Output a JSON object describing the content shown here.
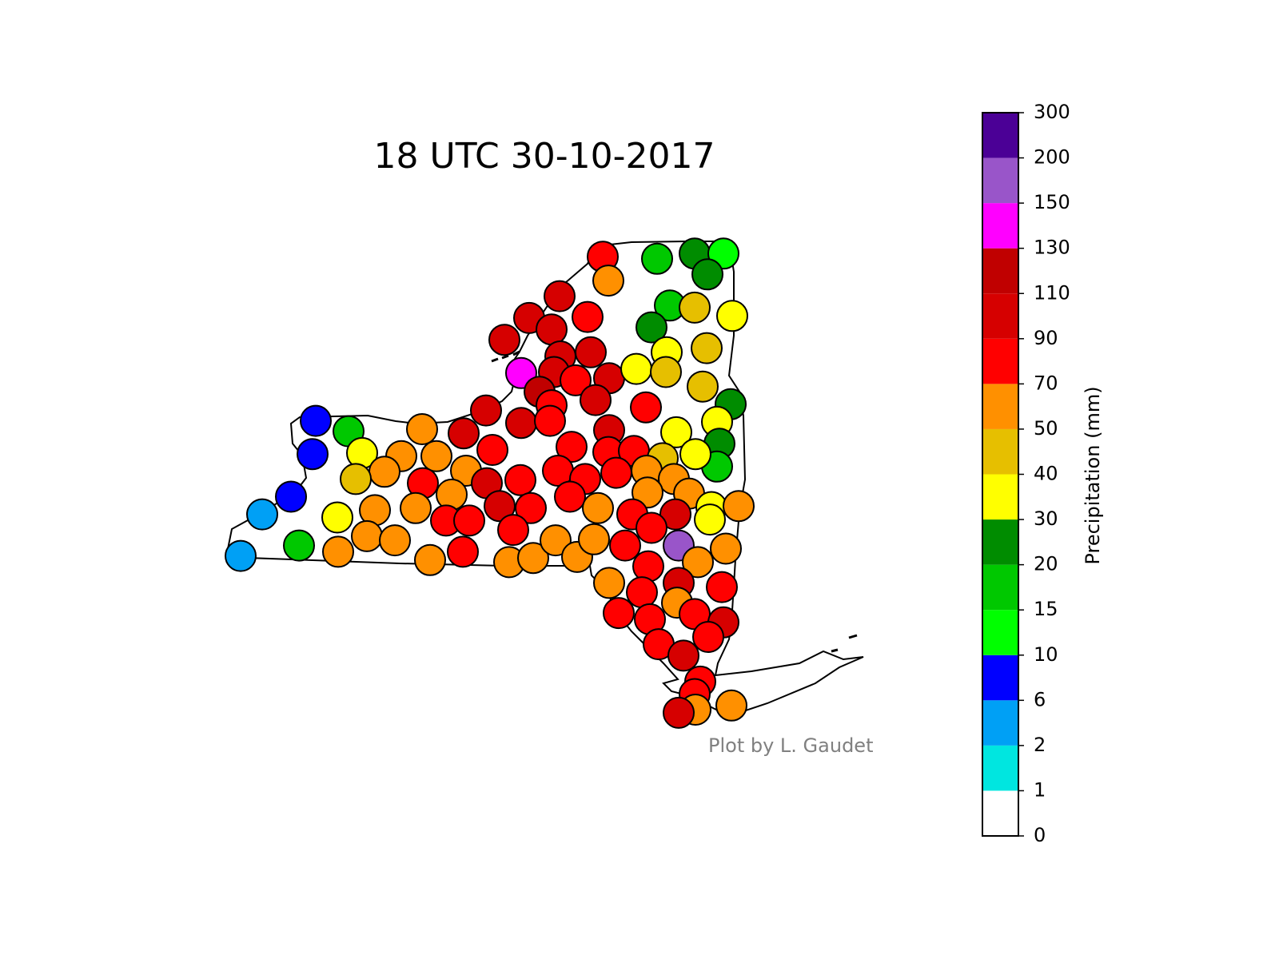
{
  "chart_data": {
    "type": "scatter",
    "title": "18 UTC 30-10-2017",
    "credit": "Plot by L. Gaudet",
    "lon": [
      -75.05,
      -74.37,
      -73.9,
      -73.54,
      -73.74,
      -74.98,
      -75.59,
      -74.21,
      -73.9,
      -73.43,
      -75.97,
      -75.24,
      -75.69,
      -74.44,
      -76.28,
      -73.75,
      -74.25,
      -75.2,
      -75.58,
      -76.07,
      -75.66,
      -75.39,
      -74.97,
      -74.63,
      -74.26,
      -73.8,
      -73.45,
      -75.84,
      -75.69,
      -75.14,
      -74.51,
      -73.62,
      -76.51,
      -76.07,
      -75.71,
      -74.97,
      -74.13,
      -73.59,
      -73.62,
      -73.89,
      -78.64,
      -78.23,
      -78.68,
      -77.31,
      -76.79,
      -76.43,
      -75.44,
      -74.98,
      -74.66,
      -74.3,
      -78.06,
      -77.57,
      -77.13,
      -76.76,
      -77.78,
      -78.14,
      -77.3,
      -76.5,
      -76.08,
      -75.61,
      -75.27,
      -74.88,
      -74.5,
      -74.16,
      -78.95,
      -79.31,
      -76.94,
      -76.34,
      -75.95,
      -75.46,
      -75.11,
      -74.49,
      -73.97,
      -73.69,
      -73.35,
      -73.71,
      -78.37,
      -77.9,
      -77.39,
      -77.01,
      -76.72,
      -76.17,
      -74.68,
      -74.14,
      -74.44,
      -79.58,
      -78.85,
      -78.36,
      -78.0,
      -77.65,
      -77.21,
      -76.8,
      -76.22,
      -75.92,
      -75.64,
      -75.37,
      -75.16,
      -74.77,
      -74.1,
      -73.86,
      -73.51,
      -74.48,
      -74.1,
      -73.56,
      -74.97,
      -74.56,
      -74.12,
      -74.85,
      -74.46,
      -73.9,
      -73.54,
      -73.73,
      -74.35,
      -74.04,
      -73.83,
      -73.9,
      -73.89,
      -74.1,
      -73.44
    ],
    "lat": [
      44.86,
      44.84,
      44.89,
      44.89,
      44.69,
      44.63,
      44.48,
      44.39,
      44.37,
      44.29,
      44.27,
      44.28,
      44.16,
      44.18,
      44.06,
      43.98,
      43.94,
      43.94,
      43.9,
      43.74,
      43.75,
      43.67,
      43.69,
      43.78,
      43.75,
      43.61,
      43.44,
      43.56,
      43.43,
      43.48,
      43.41,
      43.27,
      43.38,
      43.26,
      43.28,
      43.19,
      43.17,
      43.06,
      42.84,
      42.96,
      43.28,
      43.18,
      42.96,
      43.2,
      43.16,
      43.0,
      43.03,
      42.98,
      42.99,
      42.92,
      42.97,
      42.94,
      42.94,
      42.8,
      42.79,
      42.72,
      42.68,
      42.68,
      42.71,
      42.8,
      42.72,
      42.78,
      42.8,
      42.72,
      42.55,
      42.38,
      42.57,
      42.46,
      42.44,
      42.55,
      42.44,
      42.59,
      42.58,
      42.45,
      42.46,
      42.33,
      42.35,
      42.42,
      42.44,
      42.32,
      42.32,
      42.23,
      42.38,
      42.38,
      42.25,
      41.98,
      42.08,
      42.02,
      42.17,
      42.13,
      41.94,
      42.02,
      41.92,
      41.96,
      42.13,
      41.97,
      42.14,
      42.08,
      42.08,
      41.92,
      42.05,
      41.88,
      41.72,
      41.68,
      41.72,
      41.63,
      41.53,
      41.43,
      41.37,
      41.42,
      41.34,
      41.2,
      41.13,
      41.02,
      40.77,
      40.65,
      40.5,
      40.47,
      40.54
    ],
    "values": [
      80,
      17,
      25,
      12,
      25,
      60,
      100,
      17,
      45,
      35,
      100,
      80,
      100,
      25,
      100,
      45,
      35,
      100,
      100,
      140,
      100,
      80,
      100,
      35,
      45,
      45,
      25,
      120,
      80,
      100,
      80,
      35,
      100,
      100,
      80,
      100,
      35,
      25,
      17,
      35,
      8,
      17,
      8,
      60,
      100,
      80,
      80,
      80,
      80,
      45,
      35,
      60,
      60,
      60,
      60,
      45,
      80,
      100,
      80,
      80,
      80,
      80,
      60,
      60,
      8,
      4,
      60,
      100,
      80,
      80,
      60,
      60,
      60,
      35,
      60,
      35,
      35,
      60,
      60,
      80,
      80,
      80,
      80,
      100,
      80,
      4,
      17,
      60,
      60,
      60,
      60,
      80,
      60,
      60,
      60,
      60,
      60,
      80,
      175,
      60,
      60,
      80,
      100,
      80,
      60,
      80,
      60,
      80,
      80,
      80,
      100,
      80,
      80,
      100,
      80,
      80,
      60,
      100,
      60
    ],
    "colorbar": {
      "label": "Precipitation (mm)",
      "ticks": [
        0,
        1,
        2,
        6,
        10,
        15,
        20,
        30,
        40,
        50,
        70,
        90,
        110,
        130,
        150,
        200,
        300
      ],
      "colors": [
        "#ffffff",
        "#00e6e0",
        "#00a0f5",
        "#0000ff",
        "#00ff00",
        "#00c800",
        "#008c00",
        "#ffff00",
        "#e6bf00",
        "#ff9000",
        "#ff0000",
        "#d60000",
        "#c00000",
        "#ff00ff",
        "#9955c9",
        "#4b0096"
      ]
    }
  }
}
